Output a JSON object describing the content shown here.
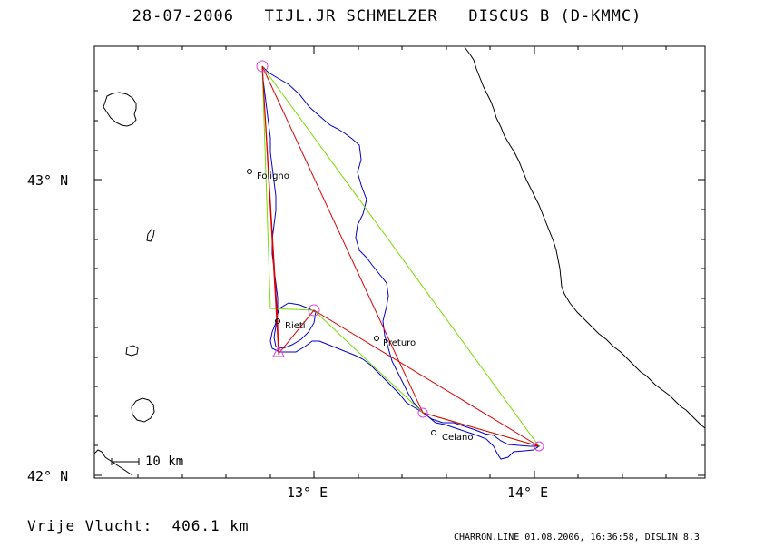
{
  "header": {
    "title": "28-07-2006   TIJL.JR SCHMELZER   DISCUS B (D-KMMC)"
  },
  "axes": {
    "lat_labels": [
      "43° N",
      "42° N"
    ],
    "lon_labels": [
      "13° E",
      "14° E"
    ]
  },
  "scale_bar": {
    "label": "10 km"
  },
  "places": [
    {
      "name": "Foligno"
    },
    {
      "name": "Rieti"
    },
    {
      "name": "Preturo"
    },
    {
      "name": "Celano"
    }
  ],
  "colors": {
    "track": "#0000cc",
    "task": "#dd0000",
    "flight_triangle": "#77dd00",
    "turnpoint": "#e040e0",
    "coast": "#000000"
  },
  "footer": {
    "distance": "Vrije Vlucht:  406.1 km",
    "credit": "CHARRON.LINE 01.08.2006, 16:36:58, DISLIN 8.3"
  }
}
